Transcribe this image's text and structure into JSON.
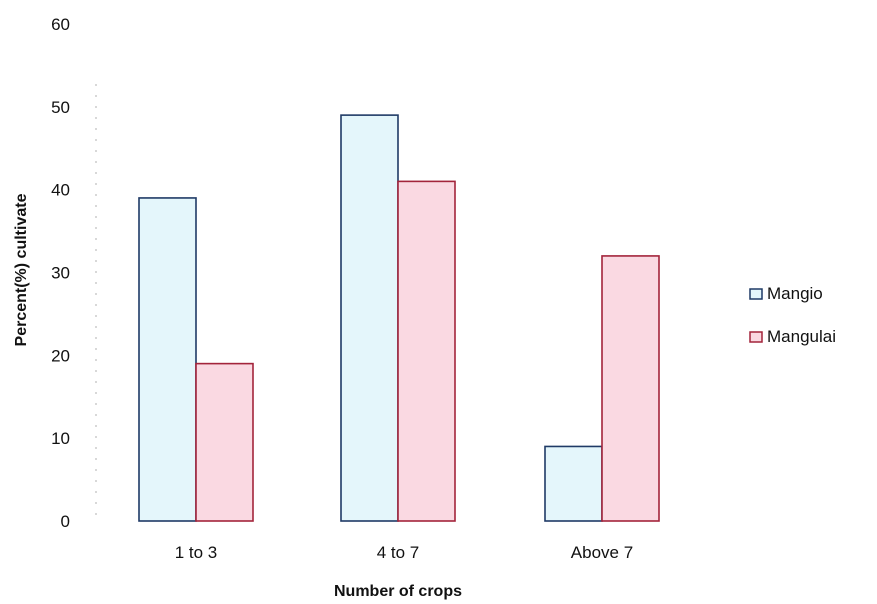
{
  "chart_data": {
    "type": "bar",
    "xlabel": "Number of crops",
    "ylabel": "Percent(%) cultivate",
    "categories": [
      "1 to 3",
      "4 to 7",
      "Above 7"
    ],
    "series": [
      {
        "name": "Mangio",
        "values": [
          39,
          49,
          9
        ],
        "fill": "#e4f6fb",
        "stroke": "#1f3a66"
      },
      {
        "name": "Mangulai",
        "values": [
          19,
          41,
          32
        ],
        "fill": "#fad9e2",
        "stroke": "#a3243b"
      }
    ],
    "ylim": [
      0,
      60
    ],
    "yticks": [
      0,
      10,
      20,
      30,
      40,
      50,
      60
    ],
    "grid": false,
    "legend": "right"
  }
}
